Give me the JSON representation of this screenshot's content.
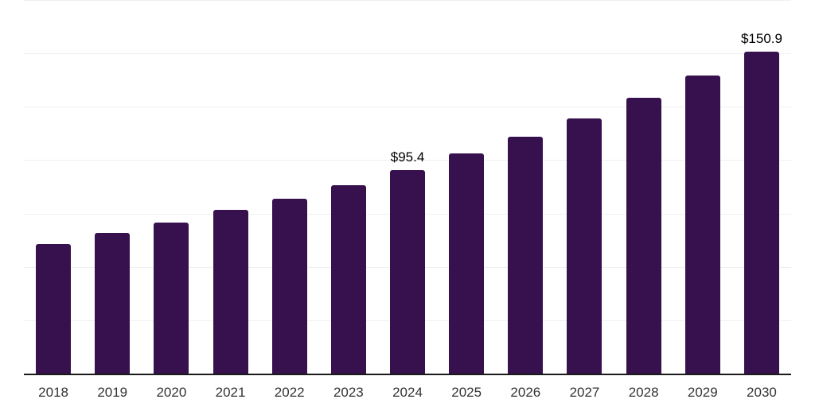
{
  "chart_data": {
    "type": "bar",
    "title": "",
    "xlabel": "",
    "ylabel": "",
    "categories": [
      "2018",
      "2019",
      "2020",
      "2021",
      "2022",
      "2023",
      "2024",
      "2025",
      "2026",
      "2027",
      "2028",
      "2029",
      "2030"
    ],
    "values": [
      60.7,
      65.9,
      70.8,
      76.7,
      82.0,
      88.3,
      95.4,
      103.2,
      111.0,
      119.6,
      129.3,
      139.7,
      150.9
    ],
    "data_labels": {
      "2024": "$95.4",
      "2030": "$150.9"
    },
    "ylim": [
      0,
      175
    ],
    "gridline_step": 25,
    "grid": "horizontal-only",
    "legend": "none",
    "colors": {
      "bar_fill": "#36114E",
      "gridline": "#f0f0f0",
      "axis_line": "#1a1a1a",
      "value_label": "#000000",
      "tick_label": "#333333",
      "background": "#ffffff"
    }
  }
}
